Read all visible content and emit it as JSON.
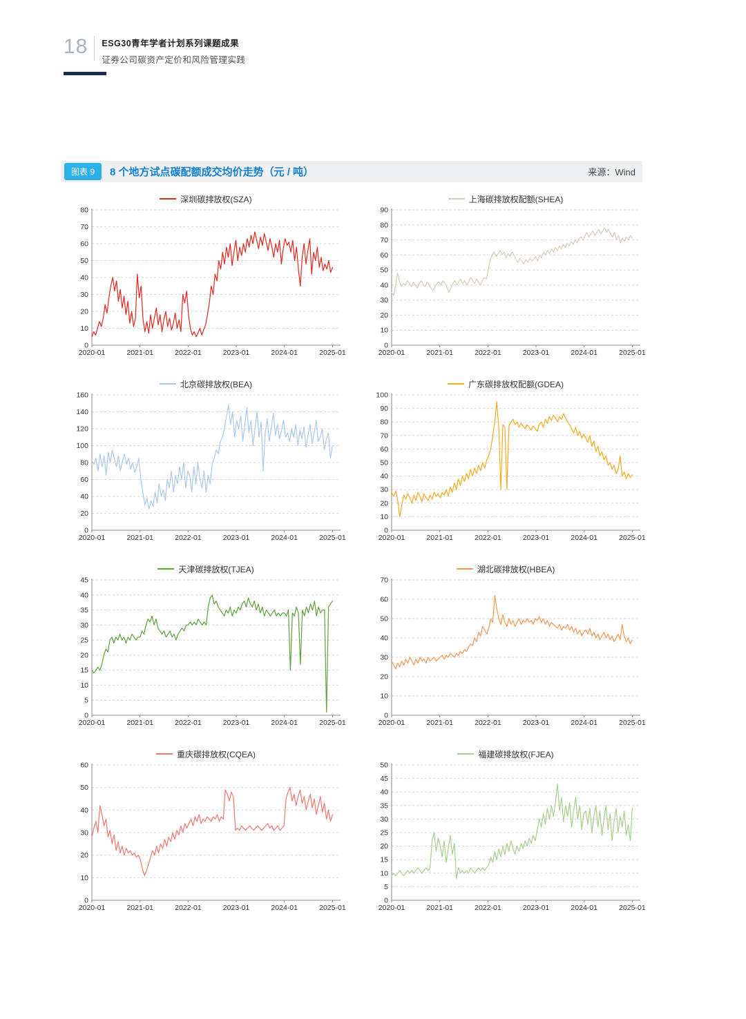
{
  "page": {
    "number": "18",
    "header_line1": "ESG30青年学者计划系列课题成果",
    "header_line2": "证券公司碳资产定价和风险管理实践"
  },
  "figure": {
    "badge": "图表 9",
    "title": "8 个地方试点碳配额成交均价走势（元 / 吨）",
    "source": "来源：Wind",
    "title_color": "#1480d0",
    "badge_color": "#2cb1e9"
  },
  "x_ticks": [
    "2020-01",
    "2021-01",
    "2022-01",
    "2023-01",
    "2024-01",
    "2025-01"
  ],
  "chart_data": [
    {
      "type": "line",
      "title": "深圳碳排放权(SZA)",
      "color": "#e0251c",
      "xlabel": "",
      "ylabel": "",
      "ylim": [
        0,
        80
      ],
      "ystep": 10,
      "x_range_months": [
        0,
        60
      ],
      "grid": true,
      "legend_position": "top",
      "values": [
        5,
        8,
        6,
        10,
        14,
        11,
        16,
        24,
        19,
        28,
        35,
        40,
        32,
        38,
        26,
        33,
        22,
        29,
        18,
        26,
        13,
        20,
        11,
        16,
        42,
        28,
        35,
        15,
        8,
        14,
        7,
        18,
        10,
        16,
        22,
        12,
        18,
        8,
        15,
        20,
        11,
        16,
        9,
        13,
        19,
        10,
        15,
        8,
        30,
        25,
        32,
        18,
        10,
        6,
        8,
        5,
        7,
        10,
        6,
        9,
        12,
        18,
        25,
        35,
        30,
        42,
        38,
        50,
        45,
        55,
        48,
        58,
        52,
        60,
        47,
        55,
        62,
        50,
        58,
        53,
        60,
        55,
        63,
        58,
        65,
        60,
        67,
        62,
        57,
        64,
        59,
        66,
        61,
        56,
        63,
        58,
        52,
        60,
        55,
        62,
        48,
        57,
        63,
        59,
        61,
        55,
        62,
        50,
        58,
        45,
        35,
        52,
        60,
        48,
        56,
        63,
        42,
        55,
        50,
        58,
        46,
        52,
        44,
        48,
        45,
        50,
        43,
        46
      ]
    },
    {
      "type": "line",
      "title": "上海碳排放权配额(SHEA)",
      "color": "#d9cbb6",
      "xlabel": "",
      "ylabel": "",
      "ylim": [
        0,
        90
      ],
      "ystep": 10,
      "x_range_months": [
        0,
        60
      ],
      "grid": true,
      "legend_position": "top",
      "values": [
        35,
        33,
        40,
        48,
        42,
        39,
        41,
        40,
        43,
        41,
        39,
        42,
        40,
        38,
        41,
        43,
        40,
        39,
        42,
        40,
        38,
        36,
        39,
        41,
        42,
        40,
        43,
        41,
        39,
        35,
        38,
        41,
        43,
        40,
        42,
        44,
        41,
        43,
        40,
        42,
        45,
        43,
        41,
        44,
        42,
        40,
        43,
        45,
        44,
        50,
        57,
        60,
        62,
        59,
        61,
        63,
        60,
        62,
        58,
        61,
        59,
        62,
        60,
        57,
        55,
        58,
        56,
        54,
        57,
        55,
        58,
        56,
        57,
        59,
        56,
        60,
        58,
        62,
        60,
        63,
        61,
        64,
        62,
        65,
        63,
        66,
        64,
        67,
        65,
        68,
        66,
        69,
        67,
        70,
        68,
        71,
        72,
        70,
        73,
        75,
        72,
        74,
        76,
        73,
        75,
        77,
        74,
        76,
        78,
        75,
        77,
        74,
        72,
        75,
        70,
        73,
        68,
        71,
        69,
        72,
        70,
        73,
        71
      ]
    },
    {
      "type": "line",
      "title": "北京碳排放权(BEA)",
      "color": "#a9c9ef",
      "xlabel": "",
      "ylabel": "",
      "ylim": [
        0,
        160
      ],
      "ystep": 20,
      "x_range_months": [
        0,
        60
      ],
      "grid": true,
      "legend_position": "top",
      "values": [
        82,
        78,
        85,
        70,
        90,
        75,
        88,
        65,
        92,
        80,
        95,
        85,
        75,
        88,
        70,
        82,
        90,
        78,
        85,
        72,
        80,
        68,
        75,
        85,
        60,
        45,
        30,
        38,
        25,
        35,
        28,
        45,
        32,
        55,
        40,
        48,
        35,
        60,
        50,
        70,
        45,
        65,
        55,
        75,
        60,
        80,
        50,
        70,
        65,
        45,
        75,
        55,
        80,
        60,
        50,
        70,
        45,
        65,
        55,
        78,
        85,
        95,
        90,
        105,
        110,
        120,
        135,
        148,
        125,
        140,
        110,
        130,
        120,
        135,
        105,
        125,
        145,
        115,
        130,
        100,
        120,
        140,
        110,
        128,
        70,
        115,
        132,
        105,
        122,
        138,
        112,
        125,
        108,
        118,
        130,
        110,
        115,
        105,
        120,
        110,
        125,
        100,
        118,
        108,
        122,
        98,
        112,
        125,
        102,
        115,
        130,
        105,
        110,
        120,
        95,
        108,
        115,
        85,
        100
      ]
    },
    {
      "type": "line",
      "title": "广东碳排放权配额(GDEA)",
      "color": "#f7a91c",
      "xlabel": "",
      "ylabel": "",
      "ylim": [
        0,
        100
      ],
      "ystep": 10,
      "x_range_months": [
        0,
        60
      ],
      "grid": true,
      "legend_position": "top",
      "values": [
        28,
        25,
        29,
        22,
        10,
        18,
        26,
        23,
        27,
        24,
        20,
        26,
        22,
        28,
        25,
        21,
        27,
        24,
        22,
        26,
        23,
        28,
        25,
        27,
        24,
        28,
        26,
        30,
        25,
        32,
        28,
        35,
        30,
        38,
        33,
        40,
        36,
        42,
        38,
        45,
        40,
        46,
        42,
        48,
        44,
        50,
        46,
        52,
        55,
        60,
        70,
        80,
        95,
        75,
        30,
        78,
        76,
        30,
        77,
        80,
        82,
        78,
        80,
        76,
        79,
        77,
        75,
        78,
        76,
        74,
        77,
        75,
        73,
        78,
        80,
        76,
        82,
        79,
        84,
        81,
        85,
        83,
        80,
        84,
        82,
        86,
        83,
        80,
        78,
        75,
        72,
        76,
        70,
        73,
        68,
        71,
        68,
        65,
        70,
        62,
        66,
        58,
        62,
        55,
        58,
        52,
        55,
        48,
        50,
        45,
        48,
        42,
        45,
        55,
        40,
        43,
        38,
        42,
        39,
        41
      ]
    },
    {
      "type": "line",
      "title": "天津碳排放权(TJEA)",
      "color": "#5da13c",
      "xlabel": "",
      "ylabel": "",
      "ylim": [
        0,
        45
      ],
      "ystep": 5,
      "x_range_months": [
        0,
        60
      ],
      "grid": true,
      "legend_position": "top",
      "values": [
        15,
        14,
        15,
        16,
        15,
        17,
        20,
        22,
        21,
        25,
        26,
        24,
        26,
        25,
        27,
        25,
        26,
        24,
        26,
        25,
        27,
        26,
        25,
        26,
        26,
        28,
        27,
        30,
        32,
        31,
        33,
        30,
        32,
        29,
        28,
        27,
        28,
        26,
        27,
        28,
        26,
        27,
        25,
        27,
        28,
        29,
        28,
        30,
        30,
        31,
        30,
        31,
        30,
        32,
        31,
        30,
        31,
        30,
        36,
        39,
        40,
        37,
        38,
        36,
        35,
        34,
        33,
        35,
        34,
        36,
        33,
        35,
        34,
        36,
        35,
        37,
        38,
        36,
        39,
        37,
        36,
        38,
        35,
        37,
        34,
        36,
        33,
        35,
        34,
        33,
        34,
        35,
        33,
        34,
        33,
        34,
        34,
        33,
        35,
        15,
        34,
        33,
        36,
        34,
        17,
        35,
        33,
        36,
        34,
        37,
        35,
        38,
        33,
        36,
        34,
        35,
        35,
        1,
        36,
        37,
        38
      ]
    },
    {
      "type": "line",
      "title": "湖北碳排放权(HBEA)",
      "color": "#f79552",
      "xlabel": "",
      "ylabel": "",
      "ylim": [
        0,
        70
      ],
      "ystep": 10,
      "x_range_months": [
        0,
        60
      ],
      "grid": true,
      "legend_position": "top",
      "values": [
        28,
        26,
        24,
        27,
        25,
        28,
        26,
        29,
        27,
        30,
        28,
        26,
        29,
        27,
        30,
        28,
        29,
        27,
        30,
        28,
        29,
        30,
        28,
        29,
        30,
        31,
        29,
        31,
        30,
        32,
        31,
        30,
        32,
        31,
        33,
        32,
        34,
        33,
        35,
        37,
        36,
        40,
        38,
        43,
        41,
        46,
        44,
        42,
        45,
        50,
        48,
        62,
        55,
        50,
        47,
        52,
        48,
        46,
        50,
        47,
        49,
        46,
        48,
        50,
        47,
        49,
        48,
        50,
        48,
        49,
        47,
        50,
        49,
        51,
        48,
        50,
        47,
        49,
        46,
        48,
        47,
        46,
        45,
        47,
        44,
        46,
        45,
        47,
        44,
        46,
        43,
        45,
        42,
        44,
        41,
        43,
        44,
        42,
        45,
        41,
        43,
        40,
        42,
        39,
        41,
        43,
        40,
        42,
        39,
        41,
        38,
        40,
        42,
        39,
        47,
        41,
        38,
        40,
        37,
        39
      ]
    },
    {
      "type": "line",
      "title": "重庆碳排放权(CQEA)",
      "color": "#f1766e",
      "xlabel": "",
      "ylabel": "",
      "ylim": [
        0,
        60
      ],
      "ystep": 10,
      "x_range_months": [
        0,
        60
      ],
      "grid": true,
      "legend_position": "top",
      "values": [
        28,
        32,
        35,
        30,
        42,
        38,
        33,
        36,
        28,
        31,
        25,
        29,
        22,
        26,
        21,
        24,
        20,
        23,
        21,
        22,
        20,
        21,
        19,
        20,
        18,
        14,
        11,
        13,
        16,
        19,
        22,
        20,
        24,
        21,
        25,
        23,
        27,
        24,
        28,
        26,
        30,
        27,
        31,
        29,
        33,
        30,
        34,
        32,
        34,
        36,
        33,
        37,
        35,
        38,
        34,
        36,
        35,
        37,
        36,
        35,
        37,
        36,
        38,
        35,
        37,
        36,
        49,
        47,
        44,
        48,
        46,
        31,
        32,
        31,
        33,
        32,
        31,
        32,
        33,
        32,
        31,
        32,
        33,
        32,
        31,
        32,
        33,
        34,
        32,
        33,
        31,
        32,
        33,
        31,
        32,
        33,
        45,
        48,
        50,
        44,
        47,
        42,
        46,
        49,
        43,
        46,
        40,
        44,
        47,
        41,
        45,
        38,
        42,
        46,
        39,
        43,
        36,
        40,
        35,
        38
      ]
    },
    {
      "type": "line",
      "title": "福建碳排放权(FJEA)",
      "color": "#a6cf8e",
      "xlabel": "",
      "ylabel": "",
      "ylim": [
        0,
        50
      ],
      "ystep": 5,
      "x_range_months": [
        0,
        60
      ],
      "grid": true,
      "legend_position": "top",
      "values": [
        9,
        10,
        9,
        10,
        11,
        10,
        9,
        10,
        11,
        10,
        11,
        10,
        11,
        12,
        11,
        10,
        11,
        12,
        11,
        12,
        22,
        25,
        18,
        23,
        20,
        16,
        22,
        14,
        19,
        24,
        17,
        21,
        8,
        12,
        10,
        11,
        10,
        11,
        10,
        12,
        11,
        10,
        11,
        12,
        11,
        12,
        11,
        12,
        13,
        16,
        14,
        18,
        15,
        19,
        16,
        20,
        17,
        21,
        18,
        22,
        19,
        17,
        20,
        18,
        21,
        19,
        22,
        20,
        23,
        21,
        24,
        22,
        26,
        30,
        27,
        32,
        28,
        34,
        30,
        35,
        31,
        36,
        43,
        33,
        38,
        29,
        35,
        31,
        36,
        27,
        33,
        38,
        30,
        35,
        26,
        32,
        33,
        28,
        34,
        25,
        31,
        35,
        27,
        33,
        24,
        30,
        35,
        26,
        32,
        22,
        29,
        34,
        25,
        31,
        27,
        33,
        24,
        28,
        22,
        34
      ]
    }
  ]
}
